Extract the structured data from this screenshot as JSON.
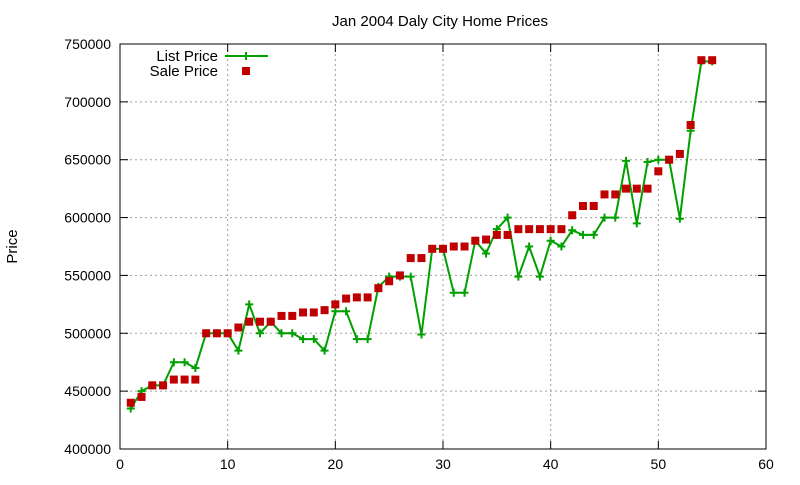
{
  "chart_data": {
    "type": "line",
    "title": "Jan 2004 Daly City Home Prices",
    "xlabel": "",
    "ylabel": "Price",
    "xlim": [
      0,
      60
    ],
    "ylim": [
      400000,
      750000
    ],
    "xticks": [
      0,
      10,
      20,
      30,
      40,
      50,
      60
    ],
    "yticks": [
      400000,
      450000,
      500000,
      550000,
      600000,
      650000,
      700000,
      750000
    ],
    "grid": true,
    "legend_position": "top-left",
    "series": [
      {
        "name": "List Price",
        "style": "line-plus",
        "color": "#00a000",
        "x": [
          1,
          2,
          3,
          4,
          5,
          6,
          7,
          8,
          9,
          10,
          11,
          12,
          13,
          14,
          15,
          16,
          17,
          18,
          19,
          20,
          21,
          22,
          23,
          24,
          25,
          26,
          27,
          28,
          29,
          30,
          31,
          32,
          33,
          34,
          35,
          36,
          37,
          38,
          39,
          40,
          41,
          42,
          43,
          44,
          45,
          46,
          47,
          48,
          49,
          50,
          51,
          52,
          53,
          54,
          55
        ],
        "y": [
          435000,
          450000,
          455000,
          455000,
          475000,
          475000,
          470000,
          500000,
          500000,
          500000,
          485000,
          525000,
          500000,
          510000,
          500000,
          500000,
          495000,
          495000,
          485000,
          519000,
          519000,
          495000,
          495000,
          540000,
          549000,
          549000,
          549000,
          499000,
          573000,
          573000,
          535000,
          535000,
          580000,
          569000,
          590000,
          600000,
          549000,
          575000,
          549000,
          580000,
          575000,
          589000,
          585000,
          585000,
          600000,
          600000,
          649000,
          595000,
          648000,
          650000,
          650000,
          599000,
          675000,
          735000,
          735000
        ]
      },
      {
        "name": "Sale Price",
        "style": "square-markers",
        "color": "#c00000",
        "x": [
          1,
          2,
          3,
          4,
          5,
          6,
          7,
          8,
          9,
          10,
          11,
          12,
          13,
          14,
          15,
          16,
          17,
          18,
          19,
          20,
          21,
          22,
          23,
          24,
          25,
          26,
          27,
          28,
          29,
          30,
          31,
          32,
          33,
          34,
          35,
          36,
          37,
          38,
          39,
          40,
          41,
          42,
          43,
          44,
          45,
          46,
          47,
          48,
          49,
          50,
          51,
          52,
          53,
          54,
          55
        ],
        "y": [
          440000,
          445000,
          455000,
          455000,
          460000,
          460000,
          460000,
          500000,
          500000,
          500000,
          505000,
          510000,
          510000,
          510000,
          515000,
          515000,
          518000,
          518000,
          520000,
          525000,
          530000,
          531000,
          531000,
          539000,
          545000,
          550000,
          565000,
          565000,
          573000,
          573000,
          575000,
          575000,
          580000,
          581000,
          585000,
          585000,
          590000,
          590000,
          590000,
          590000,
          590000,
          602000,
          610000,
          610000,
          620000,
          620000,
          625000,
          625000,
          625000,
          640000,
          650000,
          655000,
          680000,
          736000,
          736000
        ]
      }
    ]
  }
}
